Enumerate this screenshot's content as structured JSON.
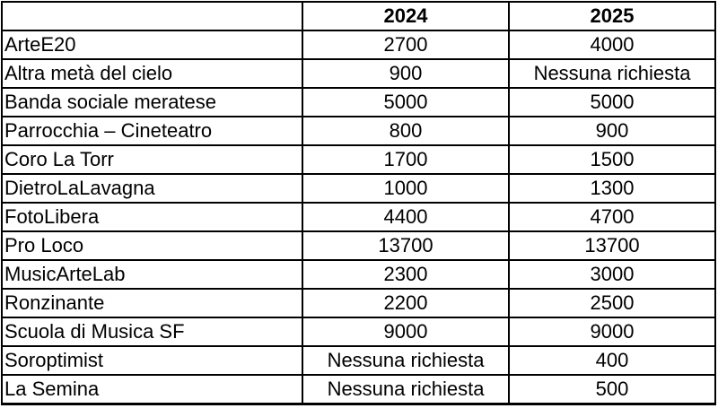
{
  "table": {
    "columns": [
      "",
      "2024",
      "2025"
    ],
    "rows": [
      {
        "cells": [
          "ArteE20",
          "2700",
          "4000"
        ]
      },
      {
        "cells": [
          "Altra metà del cielo",
          "900",
          "Nessuna richiesta"
        ]
      },
      {
        "cells": [
          "Banda sociale meratese",
          "5000",
          "5000"
        ]
      },
      {
        "cells": [
          "Parrocchia – Cineteatro",
          "800",
          "900"
        ]
      },
      {
        "cells": [
          "Coro La Torr",
          "1700",
          "1500"
        ]
      },
      {
        "cells": [
          "DietroLaLavagna",
          "1000",
          "1300"
        ]
      },
      {
        "cells": [
          "FotoLibera",
          "4400",
          "4700"
        ]
      },
      {
        "cells": [
          "Pro Loco",
          "13700",
          "13700"
        ]
      },
      {
        "cells": [
          "MusicArteLab",
          "2300",
          "3000"
        ]
      },
      {
        "cells": [
          "Ronzinante",
          "2200",
          "2500"
        ]
      },
      {
        "cells": [
          "Scuola di Musica SF",
          "9000",
          "9000"
        ]
      },
      {
        "cells": [
          "Soroptimist",
          "Nessuna richiesta",
          "400"
        ]
      },
      {
        "cells": [
          "La Semina",
          "Nessuna richiesta",
          "500"
        ]
      }
    ]
  },
  "colors": {
    "border": "#000000",
    "text": "#000000",
    "background": "#ffffff"
  },
  "chart_data": {
    "type": "table",
    "title": "",
    "columns": [
      "",
      "2024",
      "2025"
    ],
    "categories": [
      "ArteE20",
      "Altra metà del cielo",
      "Banda sociale meratese",
      "Parrocchia – Cineteatro",
      "Coro La Torr",
      "DietroLaLavagna",
      "FotoLibera",
      "Pro Loco",
      "MusicArteLab",
      "Ronzinante",
      "Scuola di Musica SF",
      "Soroptimist",
      "La Semina"
    ],
    "series": [
      {
        "name": "2024",
        "values": [
          "2700",
          "900",
          "5000",
          "800",
          "1700",
          "1000",
          "4400",
          "13700",
          "2300",
          "2200",
          "9000",
          "Nessuna richiesta",
          "Nessuna richiesta"
        ]
      },
      {
        "name": "2025",
        "values": [
          "4000",
          "Nessuna richiesta",
          "5000",
          "900",
          "1500",
          "1300",
          "4700",
          "13700",
          "3000",
          "2500",
          "9000",
          "400",
          "500"
        ]
      }
    ],
    "no_request_label": "Nessuna richiesta"
  }
}
